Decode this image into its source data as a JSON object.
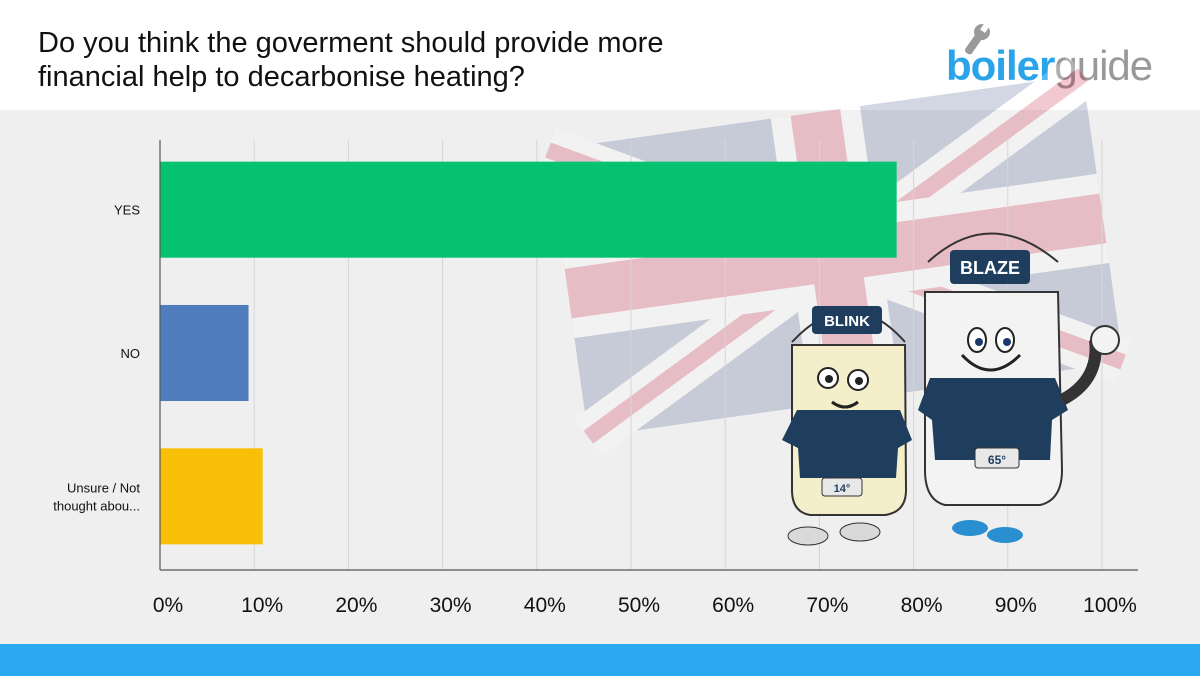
{
  "header": {
    "title_line1": "Do you think the goverment should provide more",
    "title_line2": "financial help to decarbonise heating?",
    "logo_part1": "boiler",
    "logo_part2": "guide"
  },
  "colors": {
    "yes": "#04c26f",
    "no": "#4f7dbd",
    "unsure": "#f7bf06",
    "accent": "#2aa8f0"
  },
  "chart_data": {
    "type": "bar",
    "orientation": "horizontal",
    "title": "Do you think the goverment should provide more financial help to decarbonise heating?",
    "categories": [
      "YES",
      "NO",
      "Unsure / Not thought abou..."
    ],
    "values": [
      78.2,
      9.4,
      10.9
    ],
    "units": "%",
    "xlim": [
      0,
      100
    ],
    "xticks": [
      "0%",
      "10%",
      "20%",
      "30%",
      "40%",
      "50%",
      "60%",
      "70%",
      "80%",
      "90%",
      "100%"
    ],
    "grid": true,
    "legend": "none"
  },
  "illustration": {
    "description_icons": [
      "blink-mascot",
      "blaze-mascot",
      "union-jack-flag"
    ],
    "blink_cap": "BLINK",
    "blaze_cap": "BLAZE",
    "blink_display": "14°",
    "blaze_display": "65°"
  }
}
